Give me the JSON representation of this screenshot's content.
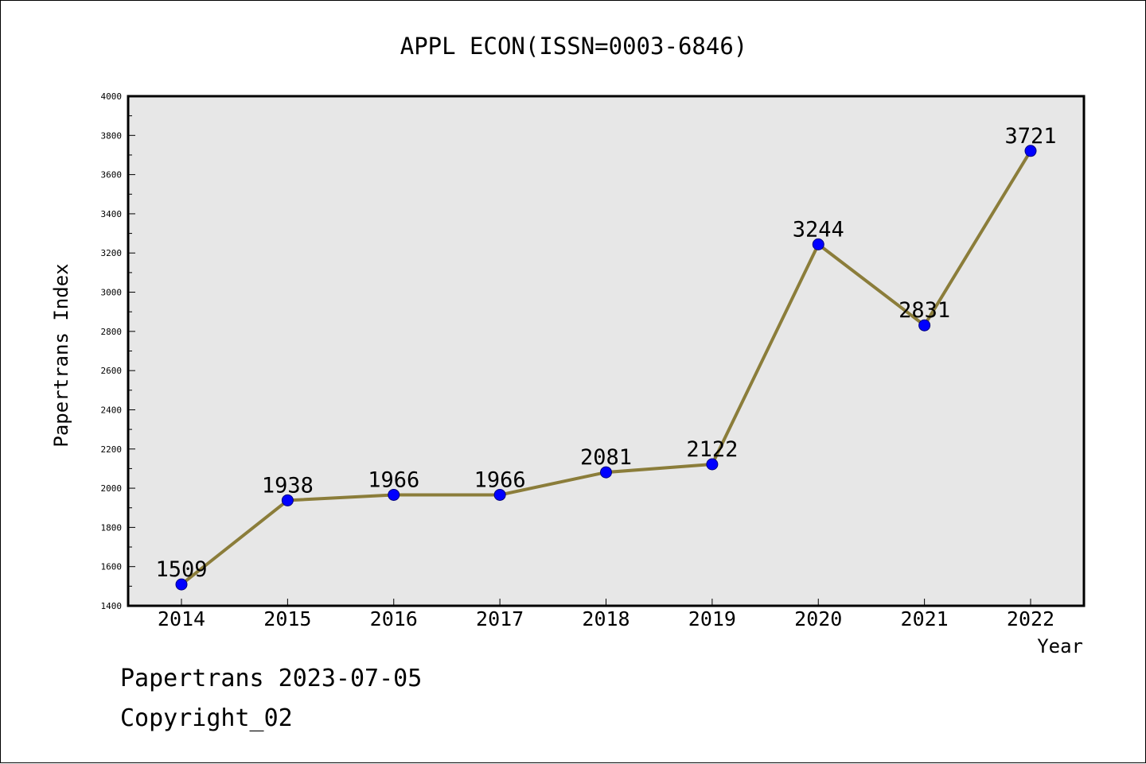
{
  "chart_data": {
    "type": "line",
    "title": "APPL ECON(ISSN=0003-6846)",
    "xlabel": "Year",
    "ylabel": "Papertrans Index",
    "categories": [
      "2014",
      "2015",
      "2016",
      "2017",
      "2018",
      "2019",
      "2020",
      "2021",
      "2022"
    ],
    "series": [
      {
        "values": [
          1509,
          1938,
          1966,
          1966,
          2081,
          2122,
          3244,
          2831,
          3721
        ]
      }
    ],
    "data_labels": [
      "1509",
      "1938",
      "1966",
      "1966",
      "2081",
      "2122",
      "3244",
      "2831",
      "3721"
    ],
    "ylim": [
      1400,
      4000
    ],
    "y_ticks": [
      1400,
      1600,
      1800,
      2000,
      2200,
      2400,
      2600,
      2800,
      3000,
      3200,
      3400,
      3600,
      3800,
      4000
    ],
    "y_minor_step": 100,
    "grid": false,
    "legend": "none",
    "colors": {
      "line": "#8b7d3a",
      "marker": "#0000ff",
      "marker_edge": "#000080",
      "plot_background": "#e7e7e7",
      "axis": "#000000"
    }
  },
  "footer": {
    "date_line": "Papertrans 2023-07-05",
    "copyright_line": "Copyright_02"
  }
}
